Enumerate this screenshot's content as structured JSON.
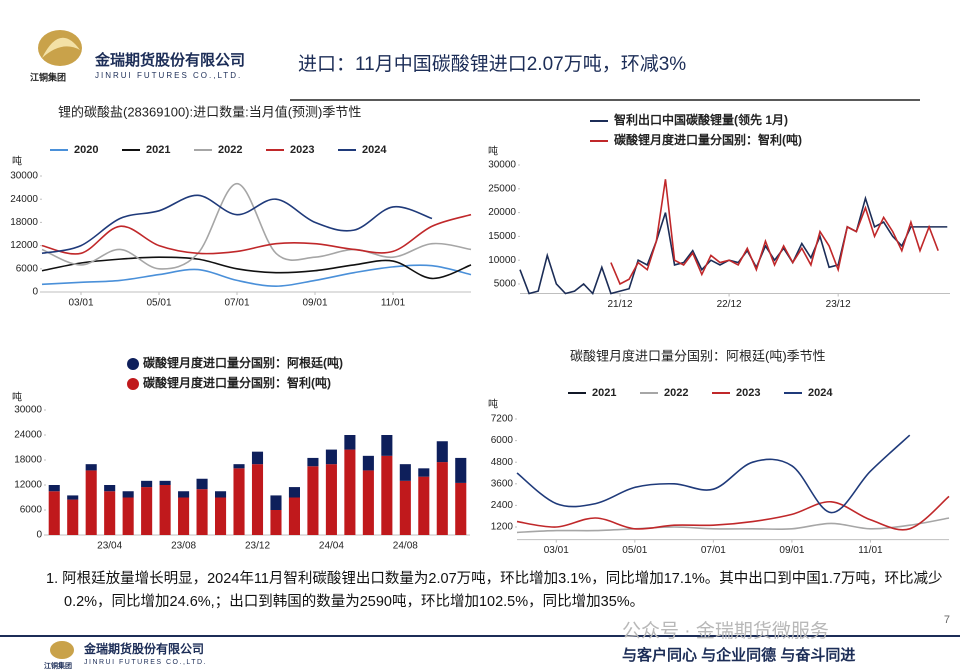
{
  "header": {
    "company": "金瑞期货股份有限公司",
    "company_en": "JINRUI FUTURES CO.,LTD.",
    "group": "江铜集团",
    "title": "进口：11月中国碳酸锂进口2.07万吨，环减3%"
  },
  "chart_data": [
    {
      "type": "line",
      "title": "锂的碳酸盐(28369100):进口数量:当月值(预测)季节性",
      "ylabel": "吨",
      "smooth": true,
      "x": [
        2,
        3,
        4,
        5,
        6,
        7,
        8,
        9,
        10,
        11,
        12,
        13
      ],
      "xlim": [
        2,
        13
      ],
      "xticks": [
        {
          "value": 3,
          "label": "03/01"
        },
        {
          "value": 5,
          "label": "05/01"
        },
        {
          "value": 7,
          "label": "07/01"
        },
        {
          "value": 9,
          "label": "09/01"
        },
        {
          "value": 11,
          "label": "11/01"
        }
      ],
      "ylim": [
        0,
        30000
      ],
      "yticks": [
        0,
        6000,
        12000,
        18000,
        24000,
        30000
      ],
      "series": [
        {
          "name": "2020",
          "color": "#4a90d9",
          "values": [
            2000,
            2500,
            3000,
            4500,
            5800,
            3000,
            1500,
            3000,
            5000,
            6500,
            6800,
            4500
          ]
        },
        {
          "name": "2021",
          "color": "#111111",
          "values": [
            5500,
            7500,
            8500,
            9000,
            8500,
            6000,
            5000,
            5500,
            7000,
            8000,
            3500,
            7000
          ]
        },
        {
          "name": "2022",
          "color": "#a6a6a6",
          "values": [
            11000,
            7000,
            11000,
            6000,
            10000,
            28000,
            10000,
            9000,
            11000,
            9000,
            12500,
            11000
          ]
        },
        {
          "name": "2023",
          "color": "#c0282a",
          "values": [
            12000,
            10000,
            17000,
            12000,
            10000,
            10500,
            12500,
            12500,
            11000,
            10500,
            17000,
            20000
          ]
        },
        {
          "name": "2024",
          "color": "#1f3a7a",
          "values": [
            10000,
            12000,
            19000,
            21000,
            25000,
            20000,
            24000,
            18000,
            16000,
            22000,
            19000,
            null
          ]
        }
      ]
    },
    {
      "type": "line",
      "ylabel": "吨",
      "smooth": false,
      "x": [
        0,
        1,
        2,
        3,
        4,
        5,
        6,
        7,
        8,
        9,
        10,
        11,
        12,
        13,
        14,
        15,
        16,
        17,
        18,
        19,
        20,
        21,
        22,
        23,
        24,
        25,
        26,
        27,
        28,
        29,
        30,
        31,
        32,
        33,
        34,
        35,
        36,
        37,
        38,
        39,
        40,
        41,
        42,
        43,
        44,
        45,
        46,
        47
      ],
      "xlim": [
        0,
        47.3
      ],
      "xticks": [
        {
          "value": 11,
          "label": "21/12"
        },
        {
          "value": 23,
          "label": "22/12"
        },
        {
          "value": 35,
          "label": "23/12"
        }
      ],
      "ylim": [
        3000,
        30000
      ],
      "yticks": [
        5000,
        10000,
        15000,
        20000,
        25000,
        30000
      ],
      "series": [
        {
          "name": "智利出口中国碳酸锂量(领先 1月)",
          "color": "#1c2d57",
          "values": [
            8000,
            3000,
            3500,
            11000,
            5000,
            3000,
            3500,
            5000,
            3000,
            8500,
            3000,
            3500,
            4000,
            10000,
            9000,
            14000,
            20000,
            9000,
            9500,
            12000,
            8000,
            10000,
            9000,
            10000,
            9500,
            12000,
            8500,
            13000,
            10000,
            12500,
            9500,
            13500,
            10500,
            15000,
            8500,
            9000,
            17000,
            16000,
            23000,
            17000,
            18000,
            15000,
            13000,
            17000,
            17000,
            17000,
            17000,
            17000
          ]
        },
        {
          "name": "碳酸锂月度进口量分国别：智利(吨)",
          "color": "#c0282a",
          "values": [
            null,
            null,
            null,
            null,
            null,
            null,
            null,
            null,
            null,
            null,
            9500,
            5000,
            6000,
            9500,
            8000,
            14000,
            27000,
            10000,
            9000,
            11500,
            7000,
            11000,
            9500,
            10000,
            9000,
            12500,
            8000,
            14000,
            9000,
            13000,
            9500,
            12500,
            9000,
            16000,
            13000,
            8000,
            17000,
            16000,
            21000,
            15000,
            19000,
            16000,
            12000,
            18000,
            12000,
            17000,
            12000,
            null
          ]
        }
      ]
    },
    {
      "type": "bar",
      "stacked": true,
      "ylabel": "吨",
      "categories": [
        null,
        null,
        null,
        "23/04",
        null,
        null,
        null,
        "23/08",
        null,
        null,
        null,
        "23/12",
        null,
        null,
        null,
        "24/04",
        null,
        null,
        null,
        "24/08",
        null,
        null,
        null
      ],
      "ylim": [
        0,
        30000
      ],
      "yticks": [
        0,
        6000,
        12000,
        18000,
        24000,
        30000
      ],
      "series": [
        {
          "name": "碳酸锂月度进口量分国别：智利(吨)",
          "color": "#c0191c",
          "values": [
            10500,
            8500,
            15500,
            10500,
            9000,
            11500,
            12000,
            9000,
            11000,
            9000,
            16000,
            17000,
            6000,
            9000,
            16500,
            17000,
            20500,
            15500,
            19000,
            13000,
            14000,
            17500,
            12500
          ]
        },
        {
          "name": "碳酸锂月度进口量分国别：阿根廷(吨)",
          "color": "#0e1f5b",
          "values": [
            1500,
            1000,
            1500,
            1500,
            1500,
            1500,
            1000,
            1500,
            2500,
            1500,
            1000,
            3000,
            3500,
            2500,
            2000,
            3500,
            3500,
            3500,
            5000,
            4000,
            2000,
            5000,
            6000
          ]
        }
      ]
    },
    {
      "type": "line",
      "title": "碳酸锂月度进口量分国别：阿根廷(吨)季节性",
      "ylabel": "吨",
      "smooth": true,
      "x": [
        2,
        3,
        4,
        5,
        6,
        7,
        8,
        9,
        10,
        11,
        12,
        13
      ],
      "xlim": [
        2,
        13
      ],
      "xticks": [
        {
          "value": 3,
          "label": "03/01"
        },
        {
          "value": 5,
          "label": "05/01"
        },
        {
          "value": 7,
          "label": "07/01"
        },
        {
          "value": 9,
          "label": "09/01"
        },
        {
          "value": 11,
          "label": "11/01"
        }
      ],
      "ylim": [
        500,
        7500
      ],
      "yticks": [
        1200,
        2400,
        3600,
        4800,
        6000,
        7200
      ],
      "series": [
        {
          "name": "2021",
          "color": "#111827",
          "values": [
            null,
            null,
            null,
            null,
            null,
            null,
            null,
            null,
            null,
            null,
            null,
            null
          ]
        },
        {
          "name": "2022",
          "color": "#a6a6a6",
          "values": [
            900,
            1000,
            1000,
            1100,
            1200,
            1100,
            1100,
            1100,
            1400,
            1100,
            1300,
            1700
          ]
        },
        {
          "name": "2023",
          "color": "#c0282a",
          "values": [
            1500,
            1200,
            1700,
            1100,
            1300,
            1300,
            1500,
            1900,
            2600,
            1600,
            1100,
            2900
          ]
        },
        {
          "name": "2024",
          "color": "#1f3a7a",
          "values": [
            4200,
            2500,
            2500,
            3400,
            3600,
            3300,
            4800,
            4600,
            2000,
            4300,
            6300,
            null
          ]
        }
      ]
    }
  ],
  "notes": [
    "1. 阿根廷放量增长明显，2024年11月智利碳酸锂出口数量为2.07万吨，环比增加3.1%，同比增加17.1%。其中出口到中国1.7万吨，环比减少0.2%，同比增加24.6%,；出口到韩国的数量为2590吨，环比增加102.5%，同比增加35%。"
  ],
  "footer": {
    "company": "金瑞期货股份有限公司",
    "company_en": "JINRUI FUTURES CO.,LTD.",
    "group": "江铜集团",
    "slogan": "与客户同心 与企业同德 与奋斗同进",
    "watermark": "公众号 · 金瑞期货微服务",
    "page": "7"
  }
}
